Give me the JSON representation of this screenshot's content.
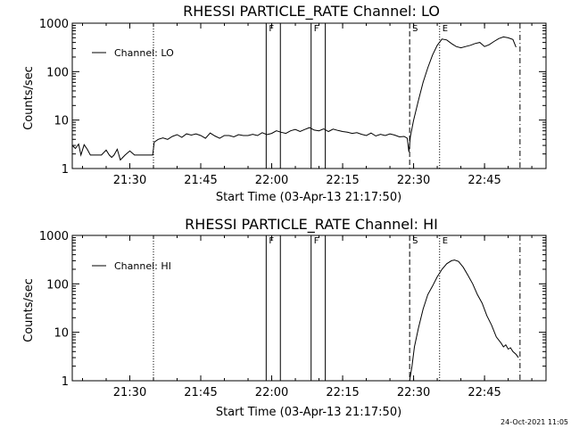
{
  "stamp": "24-Oct-2021 11:05",
  "chart_data": [
    {
      "type": "line",
      "title": "RHESSI PARTICLE_RATE Channel: LO",
      "xlabel": "Start Time (03-Apr-13 21:17:50)",
      "ylabel": "Counts/sec",
      "y_scale": "log",
      "ylim": [
        1,
        1000
      ],
      "xlim": [
        "21:17:50",
        "22:58:00"
      ],
      "x_ticks": [
        "21:30",
        "21:45",
        "22:00",
        "22:15",
        "22:30",
        "22:45"
      ],
      "y_ticks": [
        "1",
        "10",
        "100",
        "1000"
      ],
      "legend": {
        "entries": [
          "Channel: LO"
        ],
        "position": "top-left"
      },
      "markers": [
        {
          "time": "21:35:00",
          "label": "",
          "style": "dotted"
        },
        {
          "time": "21:58:50",
          "label": "F",
          "style": "solid"
        },
        {
          "time": "22:01:50",
          "label": "",
          "style": "solid"
        },
        {
          "time": "22:08:20",
          "label": "F",
          "style": "solid"
        },
        {
          "time": "22:11:20",
          "label": "",
          "style": "solid"
        },
        {
          "time": "22:29:10",
          "label": "S",
          "style": "dashed"
        },
        {
          "time": "22:35:30",
          "label": "E",
          "style": "dotted"
        },
        {
          "time": "22:52:30",
          "label": "",
          "style": "dashdot"
        }
      ],
      "series": [
        {
          "x": [
            "21:17:50",
            "21:18:30",
            "21:19:10",
            "21:19:40",
            "21:20:20",
            "21:21:00",
            "21:21:40",
            "21:22:20",
            "21:23:00",
            "21:24:00",
            "21:25:00",
            "21:25:40",
            "21:26:10",
            "21:26:40",
            "21:27:20",
            "21:28:00",
            "21:29:00",
            "21:30:00",
            "21:31:00",
            "21:32:00",
            "21:33:00",
            "21:34:00",
            "21:34:50",
            "21:35:10",
            "21:36:00",
            "21:37:00",
            "21:38:00",
            "21:39:00",
            "21:40:00",
            "21:41:00",
            "21:42:00",
            "21:43:00",
            "21:44:00",
            "21:45:00",
            "21:46:00",
            "21:47:00",
            "21:48:00",
            "21:49:00",
            "21:50:00",
            "21:51:00",
            "21:52:00",
            "21:53:00",
            "21:54:00",
            "21:55:00",
            "21:56:00",
            "21:57:00",
            "21:58:00",
            "21:59:00",
            "22:00:00",
            "22:01:00",
            "22:02:00",
            "22:03:00",
            "22:04:00",
            "22:05:00",
            "22:06:00",
            "22:07:00",
            "22:08:00",
            "22:09:00",
            "22:10:00",
            "22:11:00",
            "22:12:00",
            "22:13:00",
            "22:14:00",
            "22:15:00",
            "22:16:00",
            "22:17:00",
            "22:18:00",
            "22:19:00",
            "22:20:00",
            "22:21:00",
            "22:22:00",
            "22:23:00",
            "22:24:00",
            "22:25:00",
            "22:26:00",
            "22:27:00",
            "22:28:00",
            "22:28:40",
            "22:29:00",
            "22:29:20",
            "22:30:00",
            "22:31:00",
            "22:32:00",
            "22:33:00",
            "22:34:00",
            "22:35:00",
            "22:36:00",
            "22:37:00",
            "22:38:00",
            "22:39:00",
            "22:40:00",
            "22:41:00",
            "22:42:00",
            "22:43:00",
            "22:44:00",
            "22:45:00",
            "22:46:00",
            "22:47:00",
            "22:48:00",
            "22:49:00",
            "22:50:00",
            "22:51:00",
            "22:51:40"
          ],
          "y": [
            3.0,
            2.6,
            3.2,
            1.9,
            3.1,
            2.5,
            1.9,
            1.9,
            1.9,
            1.9,
            2.4,
            1.9,
            1.7,
            1.9,
            2.5,
            1.5,
            1.9,
            2.3,
            1.9,
            1.9,
            1.9,
            1.9,
            1.9,
            3.5,
            4.0,
            4.3,
            4.0,
            4.6,
            5.0,
            4.4,
            5.2,
            4.9,
            5.2,
            4.8,
            4.2,
            5.4,
            4.7,
            4.2,
            4.8,
            4.8,
            4.5,
            5.0,
            4.8,
            4.8,
            5.1,
            4.8,
            5.5,
            5.0,
            5.3,
            6.0,
            5.6,
            5.3,
            6.0,
            6.4,
            5.8,
            6.4,
            7.0,
            6.2,
            6.0,
            6.6,
            5.8,
            6.5,
            6.1,
            5.8,
            5.6,
            5.3,
            5.5,
            5.1,
            4.8,
            5.4,
            4.7,
            5.1,
            4.8,
            5.2,
            4.9,
            4.5,
            4.6,
            4.2,
            2.2,
            4.6,
            10,
            25,
            60,
            120,
            220,
            350,
            470,
            450,
            380,
            330,
            310,
            330,
            350,
            380,
            400,
            330,
            360,
            420,
            480,
            520,
            500,
            460,
            320
          ]
        }
      ]
    },
    {
      "type": "line",
      "title": "RHESSI PARTICLE_RATE Channel: HI",
      "xlabel": "Start Time (03-Apr-13 21:17:50)",
      "ylabel": "Counts/sec",
      "y_scale": "log",
      "ylim": [
        1,
        1000
      ],
      "xlim": [
        "21:17:50",
        "22:58:00"
      ],
      "x_ticks": [
        "21:30",
        "21:45",
        "22:00",
        "22:15",
        "22:30",
        "22:45"
      ],
      "y_ticks": [
        "1",
        "10",
        "100",
        "1000"
      ],
      "legend": {
        "entries": [
          "Channel: HI"
        ],
        "position": "top-left"
      },
      "markers": [
        {
          "time": "21:35:00",
          "label": "",
          "style": "dotted"
        },
        {
          "time": "21:58:50",
          "label": "F",
          "style": "solid"
        },
        {
          "time": "22:01:50",
          "label": "",
          "style": "solid"
        },
        {
          "time": "22:08:20",
          "label": "F",
          "style": "solid"
        },
        {
          "time": "22:11:20",
          "label": "",
          "style": "solid"
        },
        {
          "time": "22:29:10",
          "label": "S",
          "style": "dashed"
        },
        {
          "time": "22:35:30",
          "label": "E",
          "style": "dotted"
        },
        {
          "time": "22:52:30",
          "label": "",
          "style": "dashdot"
        }
      ],
      "series": [
        {
          "x": [
            "22:29:10",
            "22:29:40",
            "22:30:10",
            "22:31:00",
            "22:32:00",
            "22:33:00",
            "22:34:00",
            "22:35:00",
            "22:36:00",
            "22:37:00",
            "22:38:00",
            "22:38:40",
            "22:39:30",
            "22:40:30",
            "22:41:30",
            "22:42:30",
            "22:43:30",
            "22:44:30",
            "22:45:30",
            "22:46:30",
            "22:47:30",
            "22:48:30",
            "22:49:00",
            "22:49:30",
            "22:50:00",
            "22:50:30",
            "22:51:00",
            "22:51:40",
            "22:52:10"
          ],
          "y": [
            1,
            2,
            5,
            12,
            30,
            60,
            90,
            140,
            200,
            260,
            300,
            310,
            290,
            220,
            150,
            100,
            60,
            40,
            22,
            14,
            8,
            6,
            5,
            5.5,
            4.5,
            4.8,
            4,
            3.5,
            3
          ]
        }
      ]
    }
  ]
}
